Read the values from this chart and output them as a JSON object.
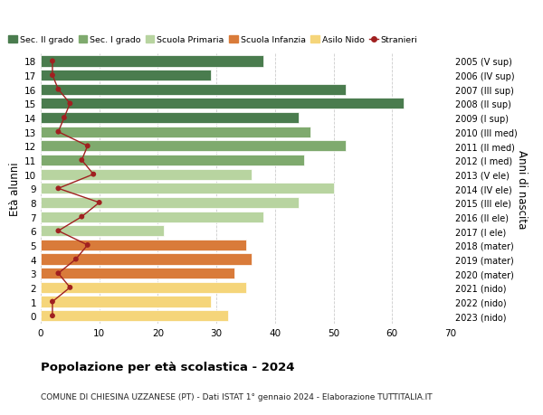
{
  "ages": [
    18,
    17,
    16,
    15,
    14,
    13,
    12,
    11,
    10,
    9,
    8,
    7,
    6,
    5,
    4,
    3,
    2,
    1,
    0
  ],
  "right_labels": [
    "2005 (V sup)",
    "2006 (IV sup)",
    "2007 (III sup)",
    "2008 (II sup)",
    "2009 (I sup)",
    "2010 (III med)",
    "2011 (II med)",
    "2012 (I med)",
    "2013 (V ele)",
    "2014 (IV ele)",
    "2015 (III ele)",
    "2016 (II ele)",
    "2017 (I ele)",
    "2018 (mater)",
    "2019 (mater)",
    "2020 (mater)",
    "2021 (nido)",
    "2022 (nido)",
    "2023 (nido)"
  ],
  "bar_values": [
    38,
    29,
    52,
    62,
    44,
    46,
    52,
    45,
    36,
    50,
    44,
    38,
    21,
    35,
    36,
    33,
    35,
    29,
    32
  ],
  "bar_colors": [
    "#4a7c4e",
    "#4a7c4e",
    "#4a7c4e",
    "#4a7c4e",
    "#4a7c4e",
    "#7faa6e",
    "#7faa6e",
    "#7faa6e",
    "#b8d4a0",
    "#b8d4a0",
    "#b8d4a0",
    "#b8d4a0",
    "#b8d4a0",
    "#d97b3a",
    "#d97b3a",
    "#d97b3a",
    "#f5d57a",
    "#f5d57a",
    "#f5d57a"
  ],
  "stranieri_values": [
    2,
    2,
    3,
    5,
    4,
    3,
    8,
    7,
    9,
    3,
    10,
    7,
    3,
    8,
    6,
    3,
    5,
    2,
    2
  ],
  "xlim": [
    0,
    70
  ],
  "xticks": [
    0,
    10,
    20,
    30,
    40,
    50,
    60,
    70
  ],
  "ylabel_left": "Età alunni",
  "ylabel_right": "Anni di nascita",
  "title": "Popolazione per età scolastica - 2024",
  "subtitle": "COMUNE DI CHIESINA UZZANESE (PT) - Dati ISTAT 1° gennaio 2024 - Elaborazione TUTTITALIA.IT",
  "legend_labels": [
    "Sec. II grado",
    "Sec. I grado",
    "Scuola Primaria",
    "Scuola Infanzia",
    "Asilo Nido",
    "Stranieri"
  ],
  "legend_colors": [
    "#4a7c4e",
    "#7faa6e",
    "#b8d4a0",
    "#d97b3a",
    "#f5d57a",
    "#a02020"
  ],
  "bg_color": "#ffffff",
  "bar_height": 0.78,
  "grid_color": "#cccccc"
}
